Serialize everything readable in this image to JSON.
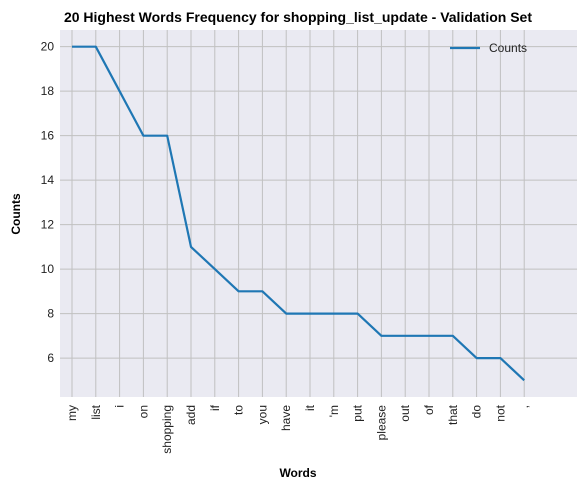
{
  "chart_data": {
    "type": "line",
    "title": "20 Highest Words Frequency for shopping_list_update - Validation Set",
    "xlabel": "Words",
    "ylabel": "Counts",
    "categories": [
      "my",
      "list",
      "i",
      "on",
      "shopping",
      "add",
      "if",
      "to",
      "you",
      "have",
      "it",
      "'m",
      "put",
      "please",
      "out",
      "of",
      "that",
      "do",
      "not",
      ","
    ],
    "series": [
      {
        "name": "Counts",
        "values": [
          20,
          20,
          18,
          16,
          16,
          11,
          10,
          9,
          9,
          8,
          8,
          8,
          8,
          7,
          7,
          7,
          7,
          6,
          6,
          5
        ]
      }
    ],
    "yticks": [
      6,
      8,
      10,
      12,
      14,
      16,
      18,
      20
    ],
    "ylim": [
      4.25,
      20.75
    ],
    "grid": true,
    "legend": "top-right",
    "colors": {
      "line": "#1f77b4",
      "background": "#eaeaf2",
      "grid": "#c0c0c0"
    }
  }
}
